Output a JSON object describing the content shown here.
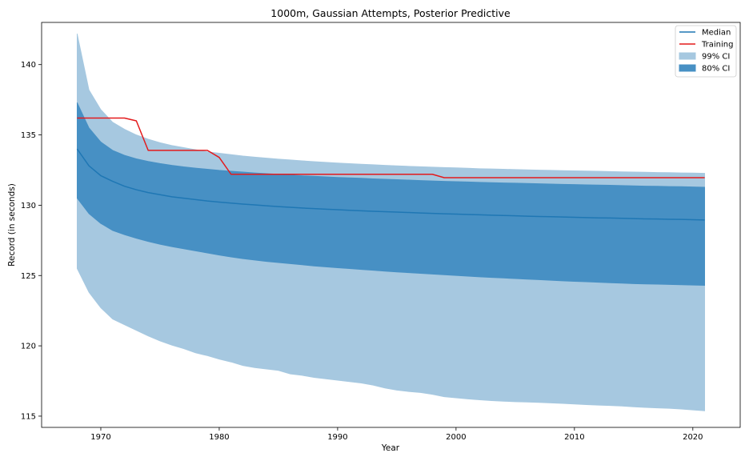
{
  "chart_data": {
    "type": "area",
    "title": "1000m, Gaussian Attempts, Posterior Predictive",
    "xlabel": "Year",
    "ylabel": "Record (in seconds)",
    "xlim": [
      1965,
      2024
    ],
    "ylim": [
      114.2,
      143.0
    ],
    "xticks": [
      1970,
      1980,
      1990,
      2000,
      2010,
      2020
    ],
    "yticks": [
      115,
      120,
      125,
      130,
      135,
      140
    ],
    "legend_position": "top-right",
    "legend": [
      {
        "label": "Median",
        "kind": "line",
        "color": "#1f77b4"
      },
      {
        "label": "Training",
        "kind": "line",
        "color": "#e31a1c"
      },
      {
        "label": "99% CI",
        "kind": "band",
        "color": "#a6c8e0"
      },
      {
        "label": "80% CI",
        "kind": "band",
        "color": "#4790c4"
      }
    ],
    "x": [
      1968,
      1969,
      1970,
      1971,
      1972,
      1973,
      1974,
      1975,
      1976,
      1977,
      1978,
      1979,
      1980,
      1981,
      1982,
      1983,
      1984,
      1985,
      1986,
      1987,
      1988,
      1989,
      1990,
      1991,
      1992,
      1993,
      1994,
      1995,
      1996,
      1997,
      1998,
      1999,
      2000,
      2001,
      2002,
      2003,
      2004,
      2005,
      2006,
      2007,
      2008,
      2009,
      2010,
      2011,
      2012,
      2013,
      2014,
      2015,
      2016,
      2017,
      2018,
      2019,
      2020,
      2021
    ],
    "series": [
      {
        "name": "Median",
        "kind": "line",
        "color": "#1f77b4",
        "values": [
          134.0,
          132.8,
          132.1,
          131.7,
          131.35,
          131.1,
          130.9,
          130.75,
          130.6,
          130.5,
          130.4,
          130.3,
          130.22,
          130.15,
          130.08,
          130.02,
          129.96,
          129.9,
          129.85,
          129.8,
          129.76,
          129.72,
          129.68,
          129.64,
          129.6,
          129.57,
          129.54,
          129.51,
          129.48,
          129.45,
          129.42,
          129.39,
          129.37,
          129.34,
          129.32,
          129.29,
          129.27,
          129.25,
          129.22,
          129.2,
          129.18,
          129.16,
          129.14,
          129.12,
          129.1,
          129.09,
          129.07,
          129.05,
          129.03,
          129.02,
          129.0,
          128.99,
          128.97,
          128.95
        ]
      },
      {
        "name": "Training",
        "kind": "line",
        "color": "#e31a1c",
        "values": [
          136.2,
          136.2,
          136.2,
          136.2,
          136.2,
          136.0,
          133.9,
          133.9,
          133.9,
          133.9,
          133.9,
          133.9,
          133.4,
          132.2,
          132.2,
          132.2,
          132.2,
          132.2,
          132.2,
          132.2,
          132.2,
          132.2,
          132.2,
          132.2,
          132.2,
          132.2,
          132.2,
          132.2,
          132.2,
          132.2,
          132.2,
          131.96,
          131.96,
          131.96,
          131.96,
          131.96,
          131.96,
          131.96,
          131.96,
          131.96,
          131.96,
          131.96,
          131.96,
          131.96,
          131.96,
          131.96,
          131.96,
          131.96,
          131.96,
          131.96,
          131.96,
          131.96,
          131.96,
          131.96
        ]
      },
      {
        "name": "99% CI",
        "kind": "band",
        "color": "#a6c8e0",
        "upper": [
          142.2,
          138.2,
          136.8,
          135.9,
          135.4,
          135.0,
          134.7,
          134.45,
          134.25,
          134.1,
          133.95,
          133.8,
          133.7,
          133.6,
          133.5,
          133.42,
          133.35,
          133.28,
          133.22,
          133.16,
          133.1,
          133.05,
          133.0,
          132.96,
          132.92,
          132.88,
          132.84,
          132.8,
          132.77,
          132.74,
          132.71,
          132.68,
          132.66,
          132.63,
          132.6,
          132.58,
          132.56,
          132.54,
          132.52,
          132.5,
          132.48,
          132.46,
          132.45,
          132.43,
          132.42,
          132.4,
          132.38,
          132.36,
          132.35,
          132.33,
          132.32,
          132.3,
          132.29,
          132.27
        ],
        "lower": [
          125.5,
          123.8,
          122.7,
          121.9,
          121.5,
          121.1,
          120.7,
          120.35,
          120.05,
          119.8,
          119.5,
          119.3,
          119.05,
          118.85,
          118.6,
          118.45,
          118.35,
          118.25,
          118.0,
          117.9,
          117.75,
          117.65,
          117.55,
          117.45,
          117.35,
          117.2,
          117.0,
          116.85,
          116.75,
          116.68,
          116.55,
          116.38,
          116.3,
          116.22,
          116.16,
          116.1,
          116.06,
          116.02,
          116.0,
          115.97,
          115.94,
          115.9,
          115.86,
          115.82,
          115.78,
          115.75,
          115.72,
          115.66,
          115.62,
          115.58,
          115.55,
          115.5,
          115.44,
          115.38
        ]
      },
      {
        "name": "80% CI",
        "kind": "band",
        "color": "#4790c4",
        "upper": [
          137.3,
          135.5,
          134.5,
          133.9,
          133.55,
          133.3,
          133.12,
          132.97,
          132.84,
          132.73,
          132.64,
          132.56,
          132.48,
          132.42,
          132.36,
          132.3,
          132.25,
          132.2,
          132.15,
          132.1,
          132.06,
          132.02,
          131.98,
          131.95,
          131.92,
          131.88,
          131.85,
          131.82,
          131.79,
          131.76,
          131.73,
          131.7,
          131.68,
          131.66,
          131.63,
          131.61,
          131.59,
          131.57,
          131.55,
          131.53,
          131.51,
          131.49,
          131.47,
          131.45,
          131.44,
          131.42,
          131.4,
          131.38,
          131.36,
          131.35,
          131.33,
          131.32,
          131.3,
          131.28
        ],
        "lower": [
          130.5,
          129.4,
          128.7,
          128.2,
          127.9,
          127.65,
          127.42,
          127.22,
          127.05,
          126.9,
          126.75,
          126.6,
          126.45,
          126.32,
          126.2,
          126.1,
          126.0,
          125.92,
          125.84,
          125.76,
          125.68,
          125.61,
          125.55,
          125.49,
          125.43,
          125.37,
          125.31,
          125.25,
          125.2,
          125.15,
          125.1,
          125.05,
          125.0,
          124.95,
          124.9,
          124.86,
          124.82,
          124.78,
          124.74,
          124.7,
          124.66,
          124.62,
          124.58,
          124.55,
          124.52,
          124.48,
          124.45,
          124.42,
          124.4,
          124.38,
          124.36,
          124.34,
          124.32,
          124.3
        ]
      }
    ]
  }
}
